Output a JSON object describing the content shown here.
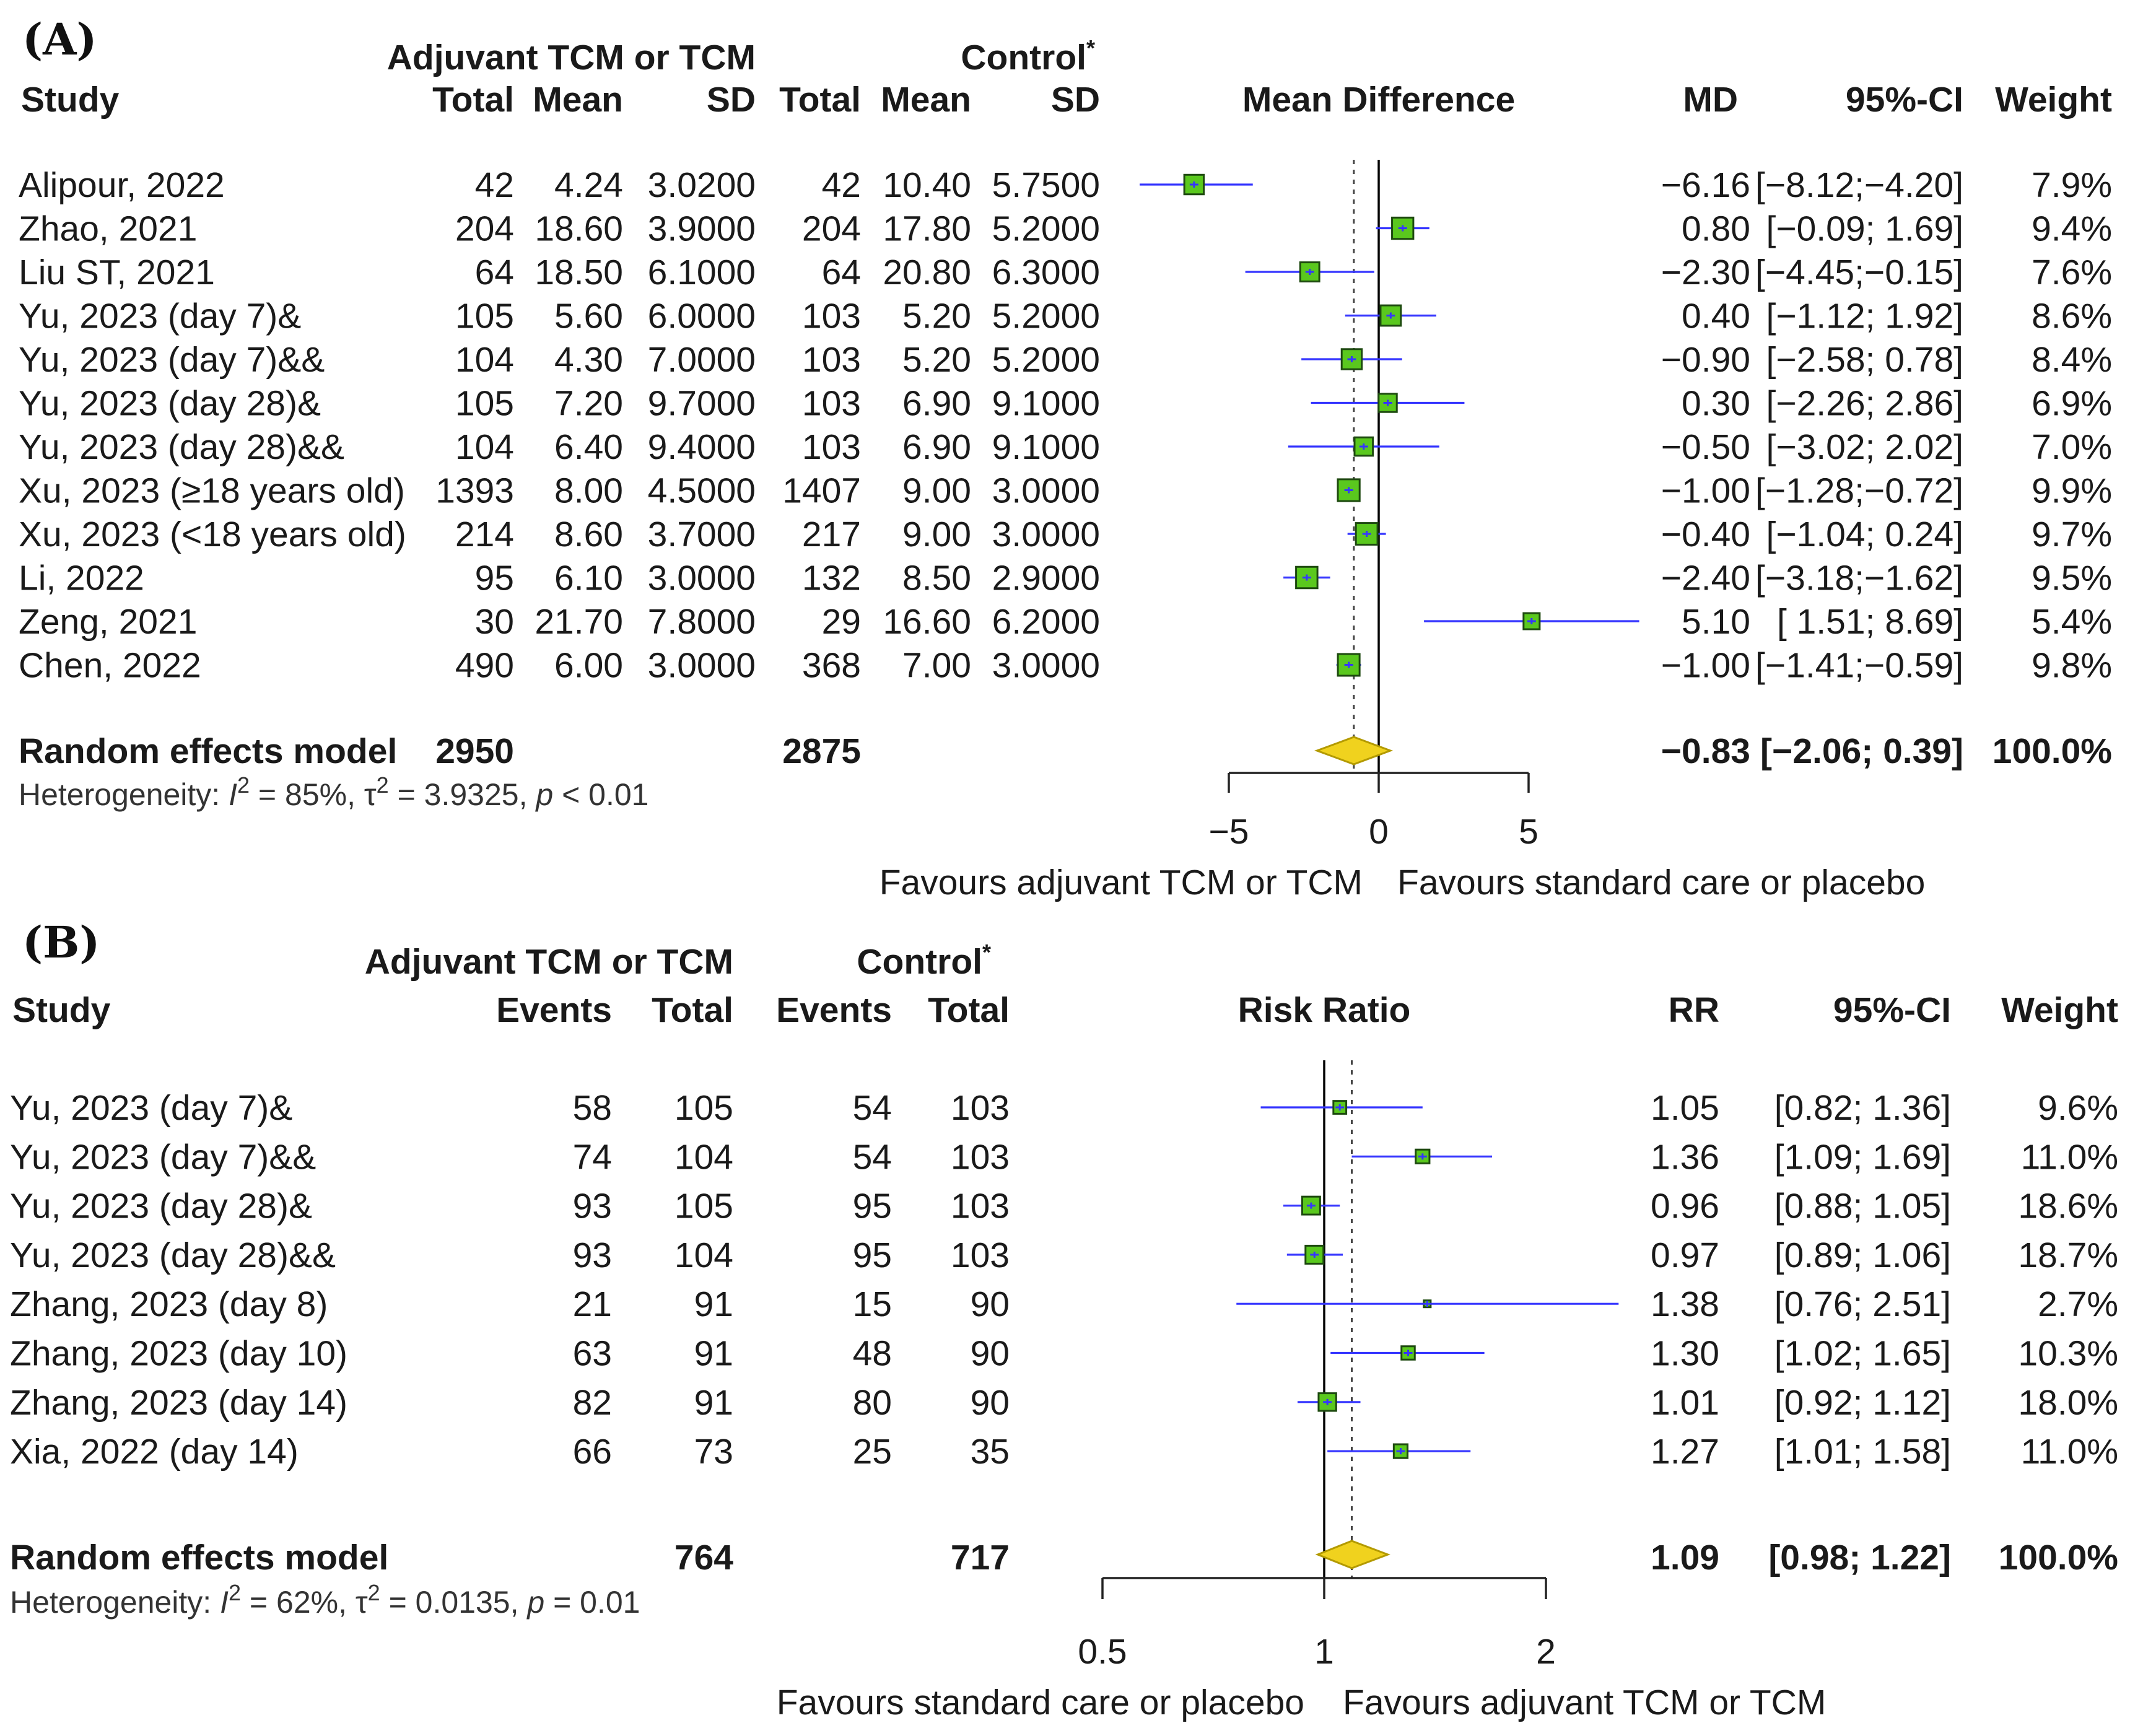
{
  "chart_data": [
    {
      "type": "forest",
      "panel_label": "(A)",
      "group_header": "Adjuvant TCM or TCM",
      "control_header": "Control",
      "control_mark": "*",
      "columns": {
        "study": "Study",
        "total": "Total",
        "mean": "Mean",
        "sd": "SD",
        "plot": "Mean Difference",
        "effect": "MD",
        "ci": "95%-CI",
        "weight": "Weight"
      },
      "studies": [
        {
          "name": "Alipour, 2022",
          "e_total": "42",
          "e_mean": "4.24",
          "e_sd": "3.0200",
          "c_total": "42",
          "c_mean": "10.40",
          "c_sd": "5.7500",
          "effect": "−6.16",
          "ci": "[−8.12;−4.20]",
          "weight": "7.9%",
          "est": -6.16,
          "lo": -8.12,
          "hi": -4.2,
          "w": 7.9
        },
        {
          "name": "Zhao, 2021",
          "e_total": "204",
          "e_mean": "18.60",
          "e_sd": "3.9000",
          "c_total": "204",
          "c_mean": "17.80",
          "c_sd": "5.2000",
          "effect": "0.80",
          "ci": "[−0.09; 1.69]",
          "weight": "9.4%",
          "est": 0.8,
          "lo": -0.09,
          "hi": 1.69,
          "w": 9.4
        },
        {
          "name": "Liu ST, 2021",
          "e_total": "64",
          "e_mean": "18.50",
          "e_sd": "6.1000",
          "c_total": "64",
          "c_mean": "20.80",
          "c_sd": "6.3000",
          "effect": "−2.30",
          "ci": "[−4.45;−0.15]",
          "weight": "7.6%",
          "est": -2.3,
          "lo": -4.45,
          "hi": -0.15,
          "w": 7.6
        },
        {
          "name": "Yu, 2023 (day 7)&",
          "e_total": "105",
          "e_mean": "5.60",
          "e_sd": "6.0000",
          "c_total": "103",
          "c_mean": "5.20",
          "c_sd": "5.2000",
          "effect": "0.40",
          "ci": "[−1.12; 1.92]",
          "weight": "8.6%",
          "est": 0.4,
          "lo": -1.12,
          "hi": 1.92,
          "w": 8.6
        },
        {
          "name": "Yu, 2023 (day 7)&&",
          "e_total": "104",
          "e_mean": "4.30",
          "e_sd": "7.0000",
          "c_total": "103",
          "c_mean": "5.20",
          "c_sd": "5.2000",
          "effect": "−0.90",
          "ci": "[−2.58; 0.78]",
          "weight": "8.4%",
          "est": -0.9,
          "lo": -2.58,
          "hi": 0.78,
          "w": 8.4
        },
        {
          "name": "Yu, 2023 (day 28)&",
          "e_total": "105",
          "e_mean": "7.20",
          "e_sd": "9.7000",
          "c_total": "103",
          "c_mean": "6.90",
          "c_sd": "9.1000",
          "effect": "0.30",
          "ci": "[−2.26; 2.86]",
          "weight": "6.9%",
          "est": 0.3,
          "lo": -2.26,
          "hi": 2.86,
          "w": 6.9
        },
        {
          "name": "Yu, 2023 (day 28)&&",
          "e_total": "104",
          "e_mean": "6.40",
          "e_sd": "9.4000",
          "c_total": "103",
          "c_mean": "6.90",
          "c_sd": "9.1000",
          "effect": "−0.50",
          "ci": "[−3.02; 2.02]",
          "weight": "7.0%",
          "est": -0.5,
          "lo": -3.02,
          "hi": 2.02,
          "w": 7.0
        },
        {
          "name": "Xu, 2023 (≥18 years old)",
          "e_total": "1393",
          "e_mean": "8.00",
          "e_sd": "4.5000",
          "c_total": "1407",
          "c_mean": "9.00",
          "c_sd": "3.0000",
          "effect": "−1.00",
          "ci": "[−1.28;−0.72]",
          "weight": "9.9%",
          "est": -1.0,
          "lo": -1.28,
          "hi": -0.72,
          "w": 9.9
        },
        {
          "name": "Xu, 2023 (<18 years old)",
          "e_total": "214",
          "e_mean": "8.60",
          "e_sd": "3.7000",
          "c_total": "217",
          "c_mean": "9.00",
          "c_sd": "3.0000",
          "effect": "−0.40",
          "ci": "[−1.04; 0.24]",
          "weight": "9.7%",
          "est": -0.4,
          "lo": -1.04,
          "hi": 0.24,
          "w": 9.7
        },
        {
          "name": "Li, 2022",
          "e_total": "95",
          "e_mean": "6.10",
          "e_sd": "3.0000",
          "c_total": "132",
          "c_mean": "8.50",
          "c_sd": "2.9000",
          "effect": "−2.40",
          "ci": "[−3.18;−1.62]",
          "weight": "9.5%",
          "est": -2.4,
          "lo": -3.18,
          "hi": -1.62,
          "w": 9.5
        },
        {
          "name": "Zeng, 2021",
          "e_total": "30",
          "e_mean": "21.70",
          "e_sd": "7.8000",
          "c_total": "29",
          "c_mean": "16.60",
          "c_sd": "6.2000",
          "effect": "5.10",
          "ci": "[ 1.51; 8.69]",
          "weight": "5.4%",
          "est": 5.1,
          "lo": 1.51,
          "hi": 8.69,
          "w": 5.4
        },
        {
          "name": "Chen, 2022",
          "e_total": "490",
          "e_mean": "6.00",
          "e_sd": "3.0000",
          "c_total": "368",
          "c_mean": "7.00",
          "c_sd": "3.0000",
          "effect": "−1.00",
          "ci": "[−1.41;−0.59]",
          "weight": "9.8%",
          "est": -1.0,
          "lo": -1.41,
          "hi": -0.59,
          "w": 9.8
        }
      ],
      "pooled": {
        "label": "Random effects model",
        "e_total": "2950",
        "c_total": "2875",
        "effect": "−0.83",
        "ci": "[−2.06; 0.39]",
        "weight": "100.0%",
        "est": -0.83,
        "lo": -2.06,
        "hi": 0.39
      },
      "heterogeneity": {
        "prefix": "Heterogeneity: ",
        "i2_var": "I",
        "i2_sup": "2",
        "i2_val": " = 85%, ",
        "tau": "τ",
        "tau_sup": "2",
        "tau_val": " = 3.9325, ",
        "p_var": "p",
        "p_val": " < 0.01"
      },
      "axis": {
        "scale": "linear",
        "null_value": 0,
        "range": [
          -5,
          5
        ],
        "ticks": [
          -5,
          0,
          5
        ],
        "tick_labels": [
          "−5",
          "0",
          "5"
        ]
      },
      "favours_left": "Favours adjuvant TCM or TCM",
      "favours_right": "Favours standard care or placebo"
    },
    {
      "type": "forest",
      "panel_label": "(B)",
      "group_header": "Adjuvant TCM or TCM",
      "control_header": "Control",
      "control_mark": "*",
      "columns": {
        "study": "Study",
        "events": "Events",
        "total": "Total",
        "plot": "Risk Ratio",
        "effect": "RR",
        "ci": "95%-CI",
        "weight": "Weight"
      },
      "studies": [
        {
          "name": "Yu, 2023 (day 7)&",
          "e_events": "58",
          "e_total": "105",
          "c_events": "54",
          "c_total": "103",
          "effect": "1.05",
          "ci": "[0.82; 1.36]",
          "weight": "9.6%",
          "est": 1.05,
          "lo": 0.82,
          "hi": 1.36,
          "w": 9.6
        },
        {
          "name": "Yu, 2023 (day 7)&&",
          "e_events": "74",
          "e_total": "104",
          "c_events": "54",
          "c_total": "103",
          "effect": "1.36",
          "ci": "[1.09; 1.69]",
          "weight": "11.0%",
          "est": 1.36,
          "lo": 1.09,
          "hi": 1.69,
          "w": 11.0
        },
        {
          "name": "Yu, 2023 (day 28)&",
          "e_events": "93",
          "e_total": "105",
          "c_events": "95",
          "c_total": "103",
          "effect": "0.96",
          "ci": "[0.88; 1.05]",
          "weight": "18.6%",
          "est": 0.96,
          "lo": 0.88,
          "hi": 1.05,
          "w": 18.6
        },
        {
          "name": "Yu, 2023 (day 28)&&",
          "e_events": "93",
          "e_total": "104",
          "c_events": "95",
          "c_total": "103",
          "effect": "0.97",
          "ci": "[0.89; 1.06]",
          "weight": "18.7%",
          "est": 0.97,
          "lo": 0.89,
          "hi": 1.06,
          "w": 18.7
        },
        {
          "name": "Zhang, 2023 (day 8)",
          "e_events": "21",
          "e_total": "91",
          "c_events": "15",
          "c_total": "90",
          "effect": "1.38",
          "ci": "[0.76; 2.51]",
          "weight": "2.7%",
          "est": 1.38,
          "lo": 0.76,
          "hi": 2.51,
          "w": 2.7
        },
        {
          "name": "Zhang, 2023 (day 10)",
          "e_events": "63",
          "e_total": "91",
          "c_events": "48",
          "c_total": "90",
          "effect": "1.30",
          "ci": "[1.02; 1.65]",
          "weight": "10.3%",
          "est": 1.3,
          "lo": 1.02,
          "hi": 1.65,
          "w": 10.3
        },
        {
          "name": "Zhang, 2023 (day 14)",
          "e_events": "82",
          "e_total": "91",
          "c_events": "80",
          "c_total": "90",
          "effect": "1.01",
          "ci": "[0.92; 1.12]",
          "weight": "18.0%",
          "est": 1.01,
          "lo": 0.92,
          "hi": 1.12,
          "w": 18.0
        },
        {
          "name": "Xia, 2022 (day 14)",
          "e_events": "66",
          "e_total": "73",
          "c_events": "25",
          "c_total": "35",
          "effect": "1.27",
          "ci": "[1.01; 1.58]",
          "weight": "11.0%",
          "est": 1.27,
          "lo": 1.01,
          "hi": 1.58,
          "w": 11.0
        }
      ],
      "pooled": {
        "label": "Random effects model",
        "e_total": "764",
        "c_total": "717",
        "effect": "1.09",
        "ci": "[0.98; 1.22]",
        "weight": "100.0%",
        "est": 1.09,
        "lo": 0.98,
        "hi": 1.22
      },
      "heterogeneity": {
        "prefix": "Heterogeneity: ",
        "i2_var": "I",
        "i2_sup": "2",
        "i2_val": " = 62%, ",
        "tau": "τ",
        "tau_sup": "2",
        "tau_val": " = 0.0135, ",
        "p_var": "p",
        "p_val": " = 0.01"
      },
      "axis": {
        "scale": "log",
        "null_value": 1,
        "range": [
          0.5,
          2
        ],
        "ticks": [
          0.5,
          1,
          2
        ],
        "tick_labels": [
          "0.5",
          "1",
          "2"
        ]
      },
      "favours_left": "Favours standard care or placebo",
      "favours_right": "Favours adjuvant TCM or TCM"
    }
  ],
  "colors": {
    "box_fill": "#5ac81e",
    "box_stroke": "#1e4a10",
    "ci_line": "#3535ff",
    "diamond_fill": "#f0d21e",
    "diamond_stroke": "#b39a00",
    "ref_line": "#000000"
  }
}
